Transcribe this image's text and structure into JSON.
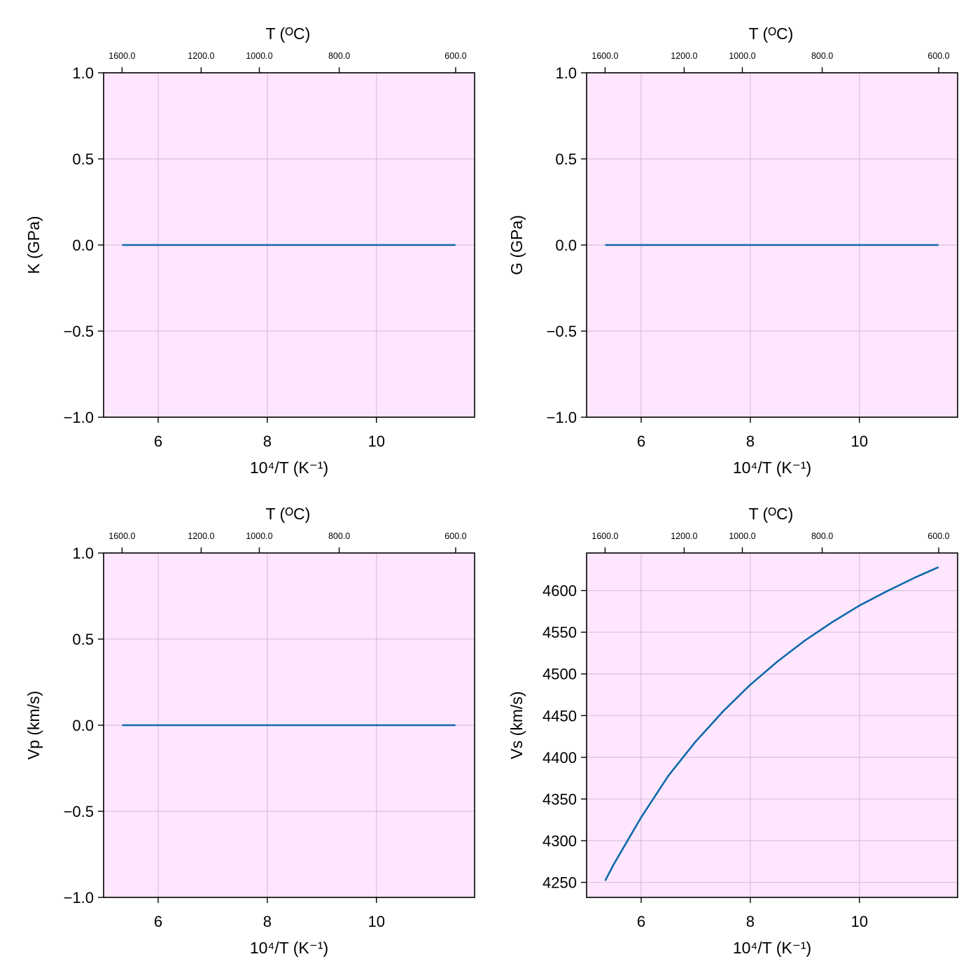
{
  "colors": {
    "plot_background": "#ffe6ff",
    "line": "#0f69aa",
    "grid": "#b8a8b8",
    "frame": "#000000"
  },
  "chart_data": [
    {
      "type": "line",
      "ylabel": "K (GPa)",
      "xlabel": "10⁴/T (K⁻¹)",
      "top_axis_label": "T (ᴼC)",
      "xlim": [
        5.0,
        11.8
      ],
      "ylim": [
        -1.0,
        1.0
      ],
      "x_ticks": [
        6,
        8,
        10
      ],
      "y_ticks": [
        -1.0,
        -0.5,
        0.0,
        0.5,
        1.0
      ],
      "y_tick_labels": [
        "−1.0",
        "−0.5",
        "0.0",
        "0.5",
        "1.0"
      ],
      "top_ticks_celsius": [
        1600,
        1200,
        1000,
        800,
        600
      ],
      "top_tick_labels": [
        "1600.0",
        "1200.0",
        "1000.0",
        "800.0",
        "600.0"
      ],
      "grid": true,
      "series": [
        {
          "x": [
            5.34,
            6.0,
            7.0,
            8.0,
            9.0,
            10.0,
            11.0,
            11.45
          ],
          "y": [
            0,
            0,
            0,
            0,
            0,
            0,
            0,
            0
          ]
        }
      ]
    },
    {
      "type": "line",
      "ylabel": "G (GPa)",
      "xlabel": "10⁴/T (K⁻¹)",
      "top_axis_label": "T (ᴼC)",
      "xlim": [
        5.0,
        11.8
      ],
      "ylim": [
        -1.0,
        1.0
      ],
      "x_ticks": [
        6,
        8,
        10
      ],
      "y_ticks": [
        -1.0,
        -0.5,
        0.0,
        0.5,
        1.0
      ],
      "y_tick_labels": [
        "−1.0",
        "−0.5",
        "0.0",
        "0.5",
        "1.0"
      ],
      "top_ticks_celsius": [
        1600,
        1200,
        1000,
        800,
        600
      ],
      "top_tick_labels": [
        "1600.0",
        "1200.0",
        "1000.0",
        "800.0",
        "600.0"
      ],
      "grid": true,
      "series": [
        {
          "x": [
            5.34,
            6.0,
            7.0,
            8.0,
            9.0,
            10.0,
            11.0,
            11.45
          ],
          "y": [
            0,
            0,
            0,
            0,
            0,
            0,
            0,
            0
          ]
        }
      ]
    },
    {
      "type": "line",
      "ylabel": "Vp (km/s)",
      "xlabel": "10⁴/T (K⁻¹)",
      "top_axis_label": "T (ᴼC)",
      "xlim": [
        5.0,
        11.8
      ],
      "ylim": [
        -1.0,
        1.0
      ],
      "x_ticks": [
        6,
        8,
        10
      ],
      "y_ticks": [
        -1.0,
        -0.5,
        0.0,
        0.5,
        1.0
      ],
      "y_tick_labels": [
        "−1.0",
        "−0.5",
        "0.0",
        "0.5",
        "1.0"
      ],
      "top_ticks_celsius": [
        1600,
        1200,
        1000,
        800,
        600
      ],
      "top_tick_labels": [
        "1600.0",
        "1200.0",
        "1000.0",
        "800.0",
        "600.0"
      ],
      "grid": true,
      "series": [
        {
          "x": [
            5.34,
            6.0,
            7.0,
            8.0,
            9.0,
            10.0,
            11.0,
            11.45
          ],
          "y": [
            0,
            0,
            0,
            0,
            0,
            0,
            0,
            0
          ]
        }
      ]
    },
    {
      "type": "line",
      "ylabel": "Vs (km/s)",
      "xlabel": "10⁴/T (K⁻¹)",
      "top_axis_label": "T (ᴼC)",
      "xlim": [
        5.0,
        11.8
      ],
      "ylim": [
        4232,
        4645
      ],
      "x_ticks": [
        6,
        8,
        10
      ],
      "y_ticks": [
        4250,
        4300,
        4350,
        4400,
        4450,
        4500,
        4550,
        4600
      ],
      "y_tick_labels": [
        "4250",
        "4300",
        "4350",
        "4400",
        "4450",
        "4500",
        "4550",
        "4600"
      ],
      "top_ticks_celsius": [
        1600,
        1200,
        1000,
        800,
        600
      ],
      "top_tick_labels": [
        "1600.0",
        "1200.0",
        "1000.0",
        "800.0",
        "600.0"
      ],
      "grid": true,
      "series": [
        {
          "x": [
            5.34,
            5.5,
            6.0,
            6.5,
            7.0,
            7.5,
            8.0,
            8.5,
            9.0,
            9.5,
            10.0,
            10.5,
            11.0,
            11.45
          ],
          "y": [
            4252,
            4272,
            4328,
            4378,
            4419,
            4455,
            4487,
            4515,
            4540,
            4562,
            4582,
            4599,
            4615,
            4628
          ]
        }
      ]
    }
  ]
}
